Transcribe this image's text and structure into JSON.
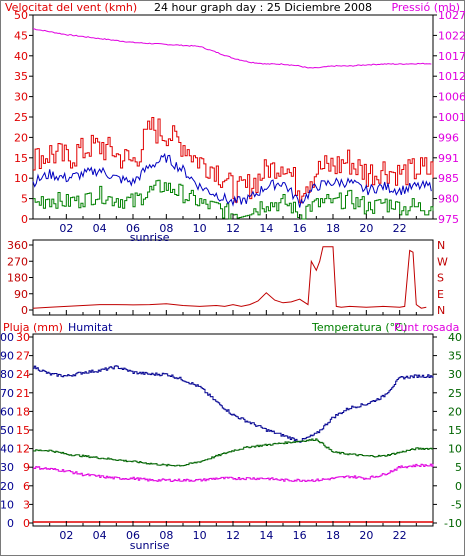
{
  "title": "24 hour graph day : 25 Diciembre 2008",
  "colors": {
    "wind": "#e00000",
    "pressure": "#e000e0",
    "gust": "#0000c0",
    "avgwind": "#008000",
    "humidity": "#000090",
    "temperature": "#006400",
    "dewpoint": "#e000e0",
    "rain": "#e00000",
    "direction": "#c00000"
  },
  "hour_ticks": [
    "02",
    "04",
    "06",
    "08",
    "10",
    "12",
    "14",
    "16",
    "18",
    "20",
    "22"
  ],
  "sunrise_label": "sunrise",
  "chart_data": [
    {
      "type": "line",
      "left_label": "Velocitat del vent (kmh)",
      "right_label": "Pressió (mb)",
      "left_ticks": [
        0,
        5,
        10,
        15,
        20,
        25,
        30,
        35,
        40,
        45,
        50
      ],
      "right_ticks": [
        975,
        980,
        985,
        991,
        996,
        1001,
        1006,
        1012,
        1017,
        1022,
        1027
      ],
      "ylim_left": [
        0,
        50
      ],
      "ylim_right": [
        975,
        1027
      ],
      "pressure_trend": {
        "hours": [
          0,
          2,
          4,
          6,
          8,
          10,
          11,
          12,
          13,
          14,
          15,
          16,
          16.5,
          17,
          18,
          19,
          20,
          21,
          22,
          23
        ],
        "values": [
          1023.5,
          1022,
          1021,
          1020,
          1019.5,
          1019,
          1017.5,
          1016,
          1015,
          1014.5,
          1014.5,
          1014,
          1013.5,
          1013.5,
          1014,
          1014,
          1014.3,
          1014.5,
          1014.5,
          1014.6
        ]
      },
      "wind_max_trend": {
        "hours": [
          0,
          1,
          2,
          3,
          4,
          5,
          6,
          7,
          8,
          9,
          10,
          11,
          12,
          13,
          14,
          15,
          16,
          17,
          18,
          19,
          20,
          21,
          22,
          23
        ],
        "values": [
          15,
          16,
          15,
          17,
          18,
          16,
          14,
          22,
          21,
          18,
          14,
          12,
          7,
          8,
          12,
          14,
          7,
          12,
          13,
          14,
          11,
          12,
          11,
          12
        ]
      },
      "wind_avg_trend": {
        "hours": [
          0,
          1,
          2,
          3,
          4,
          5,
          6,
          7,
          8,
          9,
          10,
          11,
          12,
          13,
          14,
          15,
          16,
          17,
          18,
          19,
          20,
          21,
          22,
          23
        ],
        "values": [
          9,
          11,
          10,
          11,
          12,
          10,
          9,
          13,
          15,
          12,
          8,
          6,
          4,
          5,
          8,
          9,
          4,
          8,
          9,
          9,
          7,
          8,
          7,
          8
        ]
      },
      "wind_min_trend": {
        "hours": [
          0,
          1,
          2,
          3,
          4,
          5,
          6,
          7,
          8,
          9,
          10,
          11,
          12,
          13,
          14,
          15,
          16,
          17,
          18,
          19,
          20,
          21,
          22,
          23
        ],
        "values": [
          4,
          5,
          4,
          5,
          6,
          5,
          4,
          7,
          8,
          6,
          4,
          3,
          1,
          2,
          4,
          4,
          1,
          4,
          4,
          5,
          3,
          4,
          3,
          3
        ]
      }
    },
    {
      "type": "line",
      "left_ticks": [
        0,
        90,
        180,
        270,
        360
      ],
      "right_ticks": [
        "N",
        "W",
        "S",
        "E",
        "N"
      ],
      "ylim": [
        0,
        360
      ],
      "direction": {
        "hours": [
          0,
          1,
          2,
          3,
          4,
          5,
          6,
          7,
          8,
          9,
          10,
          11,
          11.5,
          12,
          12.5,
          13,
          13.5,
          14,
          14.5,
          15,
          15.5,
          16,
          16.5,
          16.7,
          17,
          17.2,
          17.4,
          17.6,
          18,
          18.2,
          18.5,
          19,
          20,
          21,
          22,
          22.3,
          22.6,
          22.8,
          23,
          23.3,
          23.6
        ],
        "values": [
          10,
          15,
          20,
          25,
          30,
          30,
          28,
          30,
          35,
          25,
          20,
          25,
          20,
          30,
          20,
          30,
          50,
          95,
          55,
          40,
          45,
          60,
          30,
          270,
          220,
          270,
          350,
          350,
          350,
          20,
          15,
          20,
          15,
          20,
          15,
          20,
          330,
          320,
          30,
          10,
          15
        ]
      }
    },
    {
      "type": "line",
      "left_label_rain": "Pluja (mm)",
      "left_label_humidity": "Humitat",
      "right_label_temp": "Temperatura (°C)",
      "right_label_dew": "Punt rosada",
      "humidity_ticks": [
        0,
        10,
        20,
        30,
        40,
        50,
        60,
        70,
        80,
        90,
        100
      ],
      "rain_ticks": [
        0,
        3,
        6,
        9,
        12,
        15,
        18,
        21,
        24,
        27,
        30
      ],
      "temp_ticks": [
        -10,
        -5,
        0,
        5,
        10,
        15,
        20,
        25,
        30,
        35,
        40
      ],
      "ylim_humidity": [
        0,
        100
      ],
      "ylim_temp": [
        -10,
        40
      ],
      "humidity": {
        "hours": [
          0,
          1,
          2,
          3,
          4,
          5,
          6,
          7,
          8,
          9,
          10,
          11,
          12,
          13,
          14,
          15,
          16,
          17,
          18,
          19,
          20,
          21,
          22,
          23
        ],
        "values": [
          84,
          80,
          79,
          81,
          82,
          84,
          81,
          80,
          80,
          77,
          73,
          65,
          58,
          54,
          50,
          47,
          44,
          48,
          57,
          62,
          64,
          68,
          78,
          79
        ]
      },
      "temperature": {
        "hours": [
          0,
          1,
          2,
          3,
          4,
          5,
          6,
          7,
          8,
          9,
          10,
          11,
          12,
          13,
          14,
          15,
          16,
          17,
          18,
          19,
          20,
          21,
          22,
          23
        ],
        "values": [
          9.5,
          9.5,
          8.5,
          8,
          7.5,
          7,
          6.5,
          6,
          5.5,
          5.5,
          6.5,
          8,
          9.5,
          10.5,
          11,
          11.5,
          12,
          12.5,
          9,
          8.5,
          8,
          8,
          9,
          10
        ]
      },
      "dewpoint": {
        "hours": [
          0,
          1,
          2,
          3,
          4,
          5,
          6,
          7,
          8,
          9,
          10,
          11,
          12,
          13,
          14,
          15,
          16,
          17,
          18,
          19,
          20,
          21,
          22,
          23
        ],
        "values": [
          5,
          4.5,
          4,
          3,
          2.5,
          2,
          2,
          1.5,
          1.5,
          1.5,
          1.5,
          2,
          2,
          2,
          2,
          1.5,
          1.5,
          1.5,
          2,
          2.5,
          2,
          3,
          5,
          5.5
        ]
      },
      "rain": {
        "hours": [
          0,
          24
        ],
        "values": [
          0,
          0
        ]
      }
    }
  ]
}
